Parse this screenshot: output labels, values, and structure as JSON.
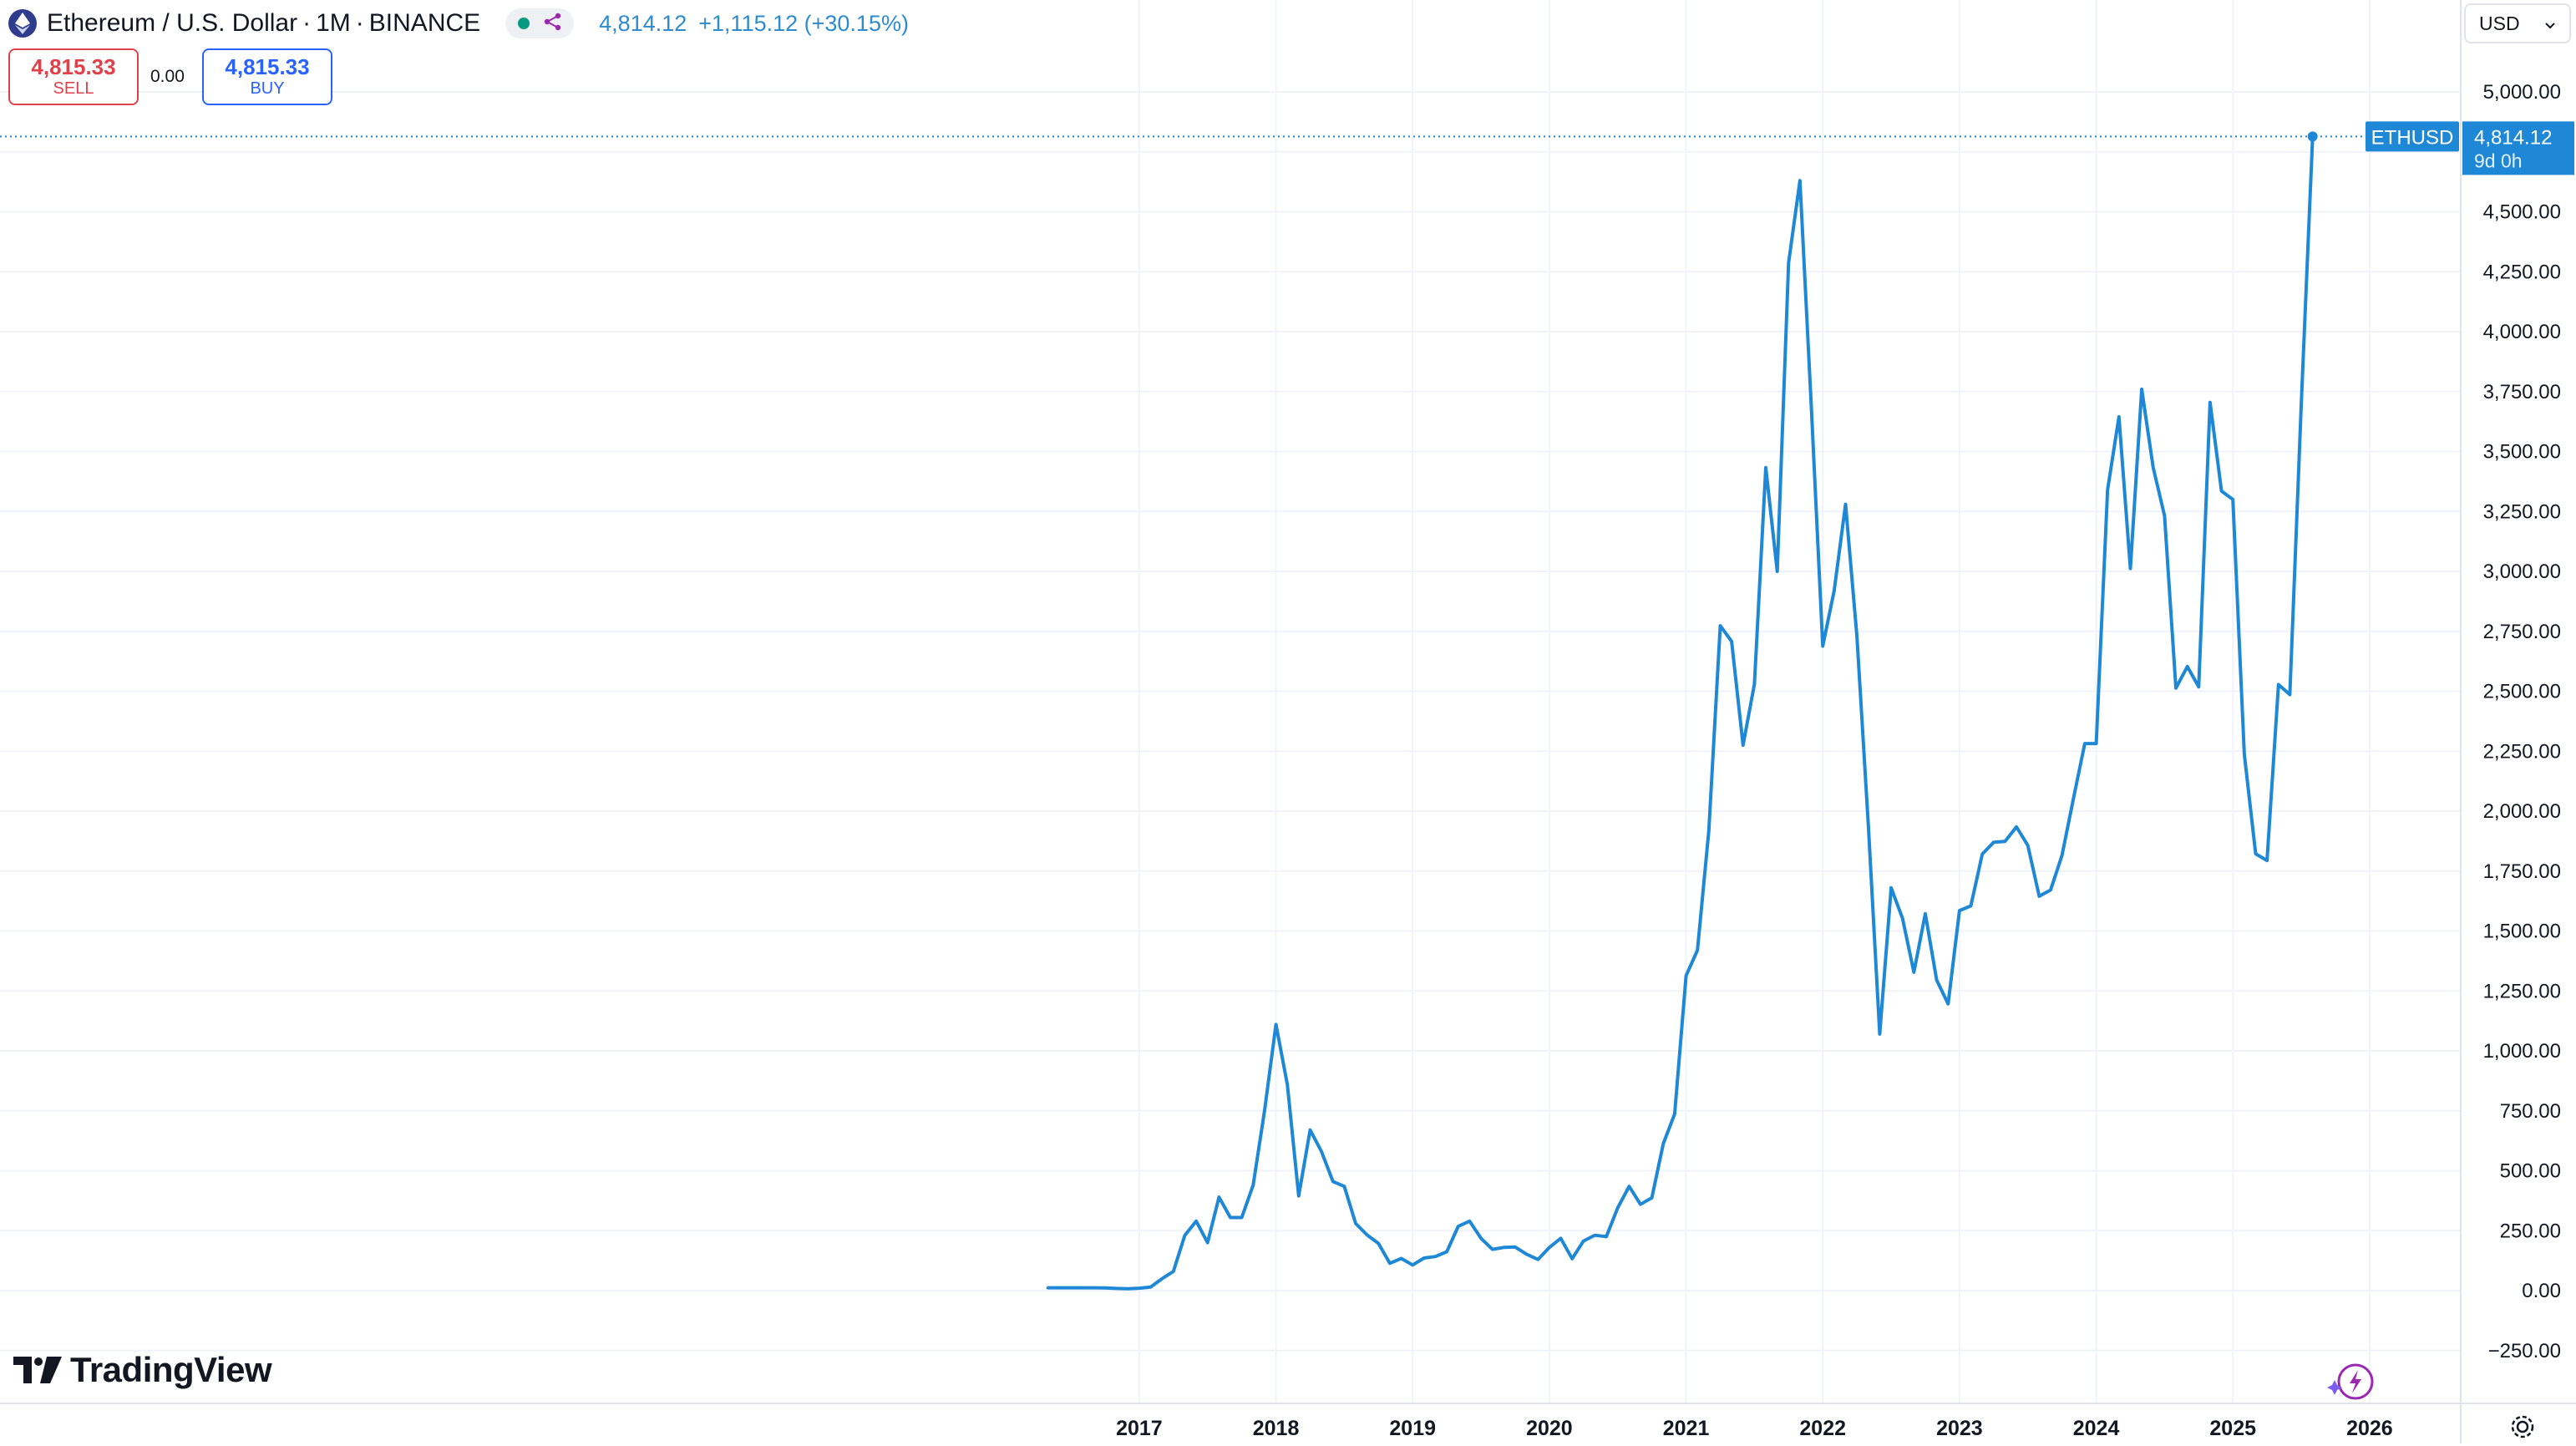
{
  "header": {
    "symbol_name": "Ethereum / U.S. Dollar",
    "interval": "1M",
    "exchange": "BINANCE",
    "sep": "·",
    "last_price": "4,814.12",
    "change": "+1,115.12 (+30.15%)"
  },
  "trade": {
    "sell_price": "4,815.33",
    "sell_label": "SELL",
    "spread": "0.00",
    "buy_price": "4,815.33",
    "buy_label": "BUY"
  },
  "currency_selector": {
    "value": "USD"
  },
  "branding": {
    "logo_text": "TradingView"
  },
  "colors": {
    "line": "#1e88d6",
    "grid": "#f0f3fa",
    "sell": "#e0424b",
    "buy": "#2962ff",
    "price_tag": "#1e88d6"
  },
  "icons": [
    "ethereum-icon",
    "share-icon",
    "chevron-down-icon",
    "bolt-icon",
    "settings-icon"
  ],
  "chart_data": {
    "type": "line",
    "symbol": "ETHUSD",
    "price_label": "4,814.12",
    "countdown": "9d 0h",
    "ylim": [
      -350,
      5200
    ],
    "y_ticks": [
      -250,
      0,
      250,
      500,
      750,
      1000,
      1250,
      1500,
      1750,
      2000,
      2250,
      2500,
      2750,
      3000,
      3250,
      3500,
      3750,
      4000,
      4250,
      4500,
      5000
    ],
    "y_tick_labels": [
      "−250.00",
      "0.00",
      "250.00",
      "500.00",
      "750.00",
      "1,000.00",
      "1,250.00",
      "1,500.00",
      "1,750.00",
      "2,000.00",
      "2,250.00",
      "2,500.00",
      "2,750.00",
      "3,000.00",
      "3,250.00",
      "3,500.00",
      "3,750.00",
      "4,000.00",
      "4,250.00",
      "4,500.00",
      "5,000.00"
    ],
    "x_ticks": [
      "2017",
      "2018",
      "2019",
      "2020",
      "2021",
      "2022",
      "2023",
      "2024",
      "2025",
      "2026"
    ],
    "x_tick_dates": [
      "2017-01",
      "2018-01",
      "2019-01",
      "2020-01",
      "2021-01",
      "2022-01",
      "2023-01",
      "2024-01",
      "2025-01",
      "2026-01"
    ],
    "x_range": [
      "2008-09",
      "2026-09"
    ],
    "grid": true,
    "series": [
      {
        "values": [
          [
            "2016-05",
            12
          ],
          [
            "2016-06",
            12
          ],
          [
            "2016-07",
            12
          ],
          [
            "2016-08",
            12
          ],
          [
            "2016-09",
            12
          ],
          [
            "2016-10",
            11
          ],
          [
            "2016-11",
            9
          ],
          [
            "2016-12",
            8
          ],
          [
            "2017-01",
            10
          ],
          [
            "2017-02",
            15
          ],
          [
            "2017-03",
            50
          ],
          [
            "2017-04",
            80
          ],
          [
            "2017-05",
            230
          ],
          [
            "2017-06",
            290
          ],
          [
            "2017-07",
            200
          ],
          [
            "2017-08",
            390
          ],
          [
            "2017-09",
            305
          ],
          [
            "2017-10",
            305
          ],
          [
            "2017-11",
            440
          ],
          [
            "2017-12",
            750
          ],
          [
            "2018-01",
            1110
          ],
          [
            "2018-02",
            860
          ],
          [
            "2018-03",
            395
          ],
          [
            "2018-04",
            670
          ],
          [
            "2018-05",
            580
          ],
          [
            "2018-06",
            455
          ],
          [
            "2018-07",
            435
          ],
          [
            "2018-08",
            280
          ],
          [
            "2018-09",
            232
          ],
          [
            "2018-10",
            197
          ],
          [
            "2018-11",
            114
          ],
          [
            "2018-12",
            134
          ],
          [
            "2019-01",
            107
          ],
          [
            "2019-02",
            136
          ],
          [
            "2019-03",
            142
          ],
          [
            "2019-04",
            162
          ],
          [
            "2019-05",
            268
          ],
          [
            "2019-06",
            290
          ],
          [
            "2019-07",
            218
          ],
          [
            "2019-08",
            172
          ],
          [
            "2019-09",
            180
          ],
          [
            "2019-10",
            182
          ],
          [
            "2019-11",
            152
          ],
          [
            "2019-12",
            130
          ],
          [
            "2020-01",
            180
          ],
          [
            "2020-02",
            218
          ],
          [
            "2020-03",
            133
          ],
          [
            "2020-04",
            207
          ],
          [
            "2020-05",
            231
          ],
          [
            "2020-06",
            225
          ],
          [
            "2020-07",
            345
          ],
          [
            "2020-08",
            435
          ],
          [
            "2020-09",
            360
          ],
          [
            "2020-10",
            387
          ],
          [
            "2020-11",
            613
          ],
          [
            "2020-12",
            737
          ],
          [
            "2021-01",
            1314
          ],
          [
            "2021-02",
            1420
          ],
          [
            "2021-03",
            1918
          ],
          [
            "2021-04",
            2773
          ],
          [
            "2021-05",
            2708
          ],
          [
            "2021-06",
            2275
          ],
          [
            "2021-07",
            2530
          ],
          [
            "2021-08",
            3433
          ],
          [
            "2021-09",
            3000
          ],
          [
            "2021-10",
            4287
          ],
          [
            "2021-11",
            4630
          ],
          [
            "2021-12",
            3680
          ],
          [
            "2022-01",
            2688
          ],
          [
            "2022-02",
            2920
          ],
          [
            "2022-03",
            3280
          ],
          [
            "2022-04",
            2730
          ],
          [
            "2022-05",
            1940
          ],
          [
            "2022-06",
            1070
          ],
          [
            "2022-07",
            1680
          ],
          [
            "2022-08",
            1553
          ],
          [
            "2022-09",
            1328
          ],
          [
            "2022-10",
            1572
          ],
          [
            "2022-11",
            1295
          ],
          [
            "2022-12",
            1196
          ],
          [
            "2023-01",
            1585
          ],
          [
            "2023-02",
            1605
          ],
          [
            "2023-03",
            1821
          ],
          [
            "2023-04",
            1870
          ],
          [
            "2023-05",
            1874
          ],
          [
            "2023-06",
            1934
          ],
          [
            "2023-07",
            1857
          ],
          [
            "2023-08",
            1645
          ],
          [
            "2023-09",
            1671
          ],
          [
            "2023-10",
            1815
          ],
          [
            "2023-11",
            2052
          ],
          [
            "2023-12",
            2282
          ],
          [
            "2024-01",
            2282
          ],
          [
            "2024-02",
            3340
          ],
          [
            "2024-03",
            3645
          ],
          [
            "2024-04",
            3012
          ],
          [
            "2024-05",
            3760
          ],
          [
            "2024-06",
            3433
          ],
          [
            "2024-07",
            3232
          ],
          [
            "2024-08",
            2513
          ],
          [
            "2024-09",
            2603
          ],
          [
            "2024-10",
            2518
          ],
          [
            "2024-11",
            3705
          ],
          [
            "2024-12",
            3335
          ],
          [
            "2025-01",
            3300
          ],
          [
            "2025-02",
            2237
          ],
          [
            "2025-03",
            1822
          ],
          [
            "2025-04",
            1794
          ],
          [
            "2025-05",
            2528
          ],
          [
            "2025-06",
            2486
          ],
          [
            "2025-07",
            3699
          ],
          [
            "2025-08",
            4814
          ]
        ]
      }
    ]
  }
}
